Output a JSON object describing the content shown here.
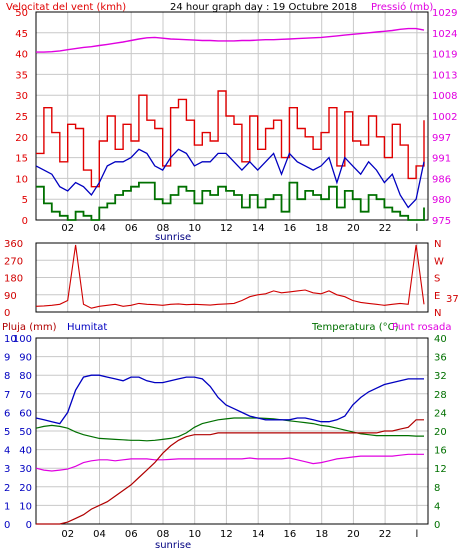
{
  "colors": {
    "wind_gust": "#e00000",
    "wind_avg": "#0000c0",
    "wind_low": "#007000",
    "pressure": "#e000e0",
    "direction": "#d00000",
    "humidity": "#0000c0",
    "rain": "#b00000",
    "temperature": "#007000",
    "dewpoint": "#e000e0",
    "grid": "#c8c8c8",
    "frame": "#000000"
  },
  "chart_data": [
    {
      "type": "line",
      "title": "24 hour graph day : 19 Octubre 2018",
      "left_label": "Velocitat del vent (kmh)",
      "right_label": "Pressió (mb)",
      "x_ticks": [
        "02",
        "04",
        "06",
        "08",
        "10",
        "12",
        "14",
        "16",
        "18",
        "20",
        "22",
        "l"
      ],
      "x_extra_label": "sunrise",
      "y_left_ticks": [
        "0",
        "5",
        "10",
        "15",
        "20",
        "25",
        "30",
        "35",
        "40",
        "45",
        "50"
      ],
      "y_left_range": [
        0,
        50
      ],
      "y_right_ticks": [
        "975",
        "980",
        "986",
        "991",
        "997",
        "1002",
        "1008",
        "1013",
        "1019",
        "1024",
        "1029"
      ],
      "y_right_range": [
        975,
        1029
      ],
      "series": [
        {
          "key": "wind_gust",
          "values": [
            16,
            27,
            21,
            14,
            23,
            22,
            12,
            8,
            19,
            25,
            17,
            23,
            19,
            30,
            24,
            22,
            13,
            27,
            29,
            24,
            18,
            21,
            19,
            31,
            25,
            23,
            14,
            25,
            17,
            22,
            24,
            15,
            27,
            22,
            20,
            17,
            21,
            27,
            13,
            26,
            19,
            18,
            25,
            20,
            15,
            23,
            18,
            10,
            13,
            24
          ]
        },
        {
          "key": "wind_avg",
          "values": [
            13,
            12,
            11,
            8,
            7,
            9,
            8,
            6,
            9,
            13,
            14,
            14,
            15,
            17,
            16,
            13,
            12,
            15,
            17,
            16,
            13,
            14,
            14,
            16,
            16,
            14,
            12,
            14,
            12,
            14,
            16,
            11,
            16,
            14,
            13,
            12,
            13,
            15,
            9,
            15,
            13,
            11,
            14,
            12,
            9,
            11,
            6,
            3,
            5,
            14
          ]
        },
        {
          "key": "wind_low",
          "values": [
            8,
            4,
            2,
            1,
            0,
            2,
            1,
            0,
            3,
            4,
            6,
            7,
            8,
            9,
            9,
            5,
            4,
            6,
            8,
            7,
            4,
            7,
            6,
            8,
            7,
            6,
            3,
            6,
            3,
            5,
            6,
            2,
            9,
            5,
            7,
            6,
            5,
            8,
            3,
            7,
            5,
            2,
            6,
            5,
            3,
            2,
            1,
            0,
            0,
            3
          ]
        },
        {
          "key": "pressure",
          "values": [
            1018.6,
            1018.6,
            1018.7,
            1018.9,
            1019.2,
            1019.5,
            1019.8,
            1020.0,
            1020.3,
            1020.6,
            1020.9,
            1021.2,
            1021.6,
            1022.0,
            1022.3,
            1022.4,
            1022.2,
            1022.0,
            1021.9,
            1021.8,
            1021.7,
            1021.6,
            1021.6,
            1021.5,
            1021.5,
            1021.5,
            1021.6,
            1021.6,
            1021.7,
            1021.8,
            1021.8,
            1021.9,
            1022.0,
            1022.1,
            1022.2,
            1022.3,
            1022.4,
            1022.6,
            1022.8,
            1023.0,
            1023.2,
            1023.4,
            1023.6,
            1023.8,
            1024.0,
            1024.2,
            1024.5,
            1024.7,
            1024.7,
            1024.3
          ]
        }
      ]
    },
    {
      "type": "line",
      "y_left_ticks": [
        "0",
        "90",
        "180",
        "270",
        "360"
      ],
      "y_left_range": [
        0,
        360
      ],
      "y_right_ticks": [
        "N",
        "E",
        "S",
        "W",
        "N"
      ],
      "current_value": "37",
      "series": [
        {
          "key": "direction",
          "values": [
            30,
            32,
            35,
            40,
            60,
            350,
            40,
            20,
            30,
            35,
            40,
            30,
            35,
            45,
            40,
            38,
            35,
            40,
            42,
            38,
            40,
            38,
            36,
            40,
            42,
            45,
            60,
            80,
            90,
            95,
            110,
            100,
            105,
            110,
            115,
            100,
            95,
            110,
            90,
            80,
            60,
            50,
            45,
            40,
            35,
            40,
            45,
            40,
            350,
            40
          ]
        }
      ]
    },
    {
      "type": "line",
      "left_labels": [
        "Pluja (mm)",
        "Humitat"
      ],
      "right_labels": [
        "Temperatura (°C)",
        "Punt rosada"
      ],
      "x_ticks": [
        "02",
        "04",
        "06",
        "08",
        "10",
        "12",
        "14",
        "16",
        "18",
        "20",
        "22",
        "l"
      ],
      "x_extra_label": "sunrise",
      "y_left_ticks": [
        "0",
        "1",
        "2",
        "3",
        "4",
        "5",
        "6",
        "7",
        "8",
        "9",
        "10"
      ],
      "y_humidity_ticks": [
        "0",
        "10",
        "20",
        "30",
        "40",
        "50",
        "60",
        "70",
        "80",
        "90",
        "100"
      ],
      "y_left_range": [
        0,
        100
      ],
      "y_right_ticks": [
        "0",
        "4",
        "8",
        "12",
        "16",
        "20",
        "24",
        "28",
        "32",
        "36",
        "40"
      ],
      "y_right_range": [
        0,
        40
      ],
      "series": [
        {
          "key": "humidity",
          "values": [
            57,
            56,
            55,
            54,
            60,
            72,
            79,
            80,
            80,
            79,
            78,
            77,
            79,
            79,
            77,
            76,
            76,
            77,
            78,
            79,
            79,
            78,
            74,
            68,
            64,
            62,
            60,
            58,
            57,
            56,
            56,
            56,
            56,
            57,
            57,
            56,
            55,
            55,
            56,
            58,
            64,
            68,
            71,
            73,
            75,
            76,
            77,
            78,
            78,
            78
          ]
        },
        {
          "key": "rain",
          "values": [
            0.0,
            0.0,
            0.0,
            0.0,
            0.1,
            0.3,
            0.5,
            0.8,
            1.0,
            1.2,
            1.5,
            1.8,
            2.1,
            2.5,
            2.9,
            3.3,
            3.8,
            4.2,
            4.5,
            4.7,
            4.8,
            4.8,
            4.8,
            4.9,
            4.9,
            4.9,
            4.9,
            4.9,
            4.9,
            4.9,
            4.9,
            4.9,
            4.9,
            4.9,
            4.9,
            4.9,
            4.9,
            4.9,
            4.9,
            4.9,
            4.9,
            4.9,
            4.9,
            4.9,
            5.0,
            5.0,
            5.1,
            5.2,
            5.6,
            5.6
          ]
        },
        {
          "key": "temperature",
          "values": [
            20.6,
            21.0,
            21.2,
            21.0,
            20.6,
            19.8,
            19.2,
            18.8,
            18.4,
            18.3,
            18.2,
            18.1,
            18.0,
            18.0,
            17.9,
            18.0,
            18.2,
            18.4,
            18.8,
            19.6,
            20.8,
            21.6,
            22.0,
            22.4,
            22.6,
            22.8,
            22.8,
            22.8,
            22.8,
            22.7,
            22.6,
            22.4,
            22.2,
            22.0,
            21.8,
            21.6,
            21.2,
            21.0,
            20.6,
            20.2,
            19.8,
            19.4,
            19.2,
            19.0,
            19.0,
            19.0,
            19.0,
            19.0,
            18.9,
            18.9
          ]
        },
        {
          "key": "dewpoint",
          "values": [
            12.0,
            11.6,
            11.4,
            11.6,
            11.8,
            12.4,
            13.2,
            13.6,
            13.8,
            13.8,
            13.6,
            13.8,
            14.0,
            14.0,
            14.0,
            13.8,
            13.8,
            13.9,
            14.0,
            14.0,
            14.0,
            14.0,
            14.0,
            14.0,
            14.0,
            14.0,
            14.0,
            14.2,
            14.0,
            14.0,
            14.0,
            14.0,
            14.2,
            13.8,
            13.4,
            13.0,
            13.2,
            13.6,
            14.0,
            14.2,
            14.4,
            14.6,
            14.6,
            14.6,
            14.6,
            14.6,
            14.8,
            15.0,
            15.0,
            15.0
          ]
        }
      ]
    }
  ]
}
